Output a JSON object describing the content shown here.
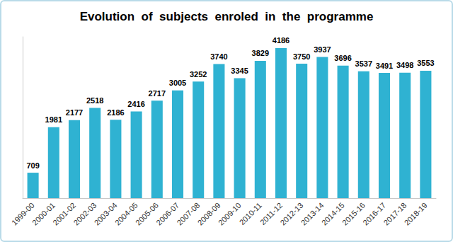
{
  "chart_data": {
    "type": "bar",
    "title": "Evolution  of  subjects  enroled  in  the  programme",
    "categories": [
      "1999-00",
      "2000-01",
      "2001-02",
      "2002-03",
      "2003-04",
      "2004-05",
      "2005-06",
      "2006-07",
      "2007-08",
      "2008-09",
      "2009-10",
      "2010-11",
      "2011-12",
      "2012-13",
      "2013-14",
      "2014-15",
      "2015-16",
      "2016-17",
      "2017-18",
      "2018-19"
    ],
    "values": [
      709,
      1981,
      2177,
      2518,
      2186,
      2416,
      2717,
      3005,
      3252,
      3740,
      3345,
      3829,
      4186,
      3750,
      3937,
      3696,
      3537,
      3491,
      3498,
      3553
    ],
    "color": "#2fb2d2",
    "ylim": [
      0,
      4500
    ],
    "grid": false,
    "data_labels": true,
    "tick_labels": "x"
  }
}
